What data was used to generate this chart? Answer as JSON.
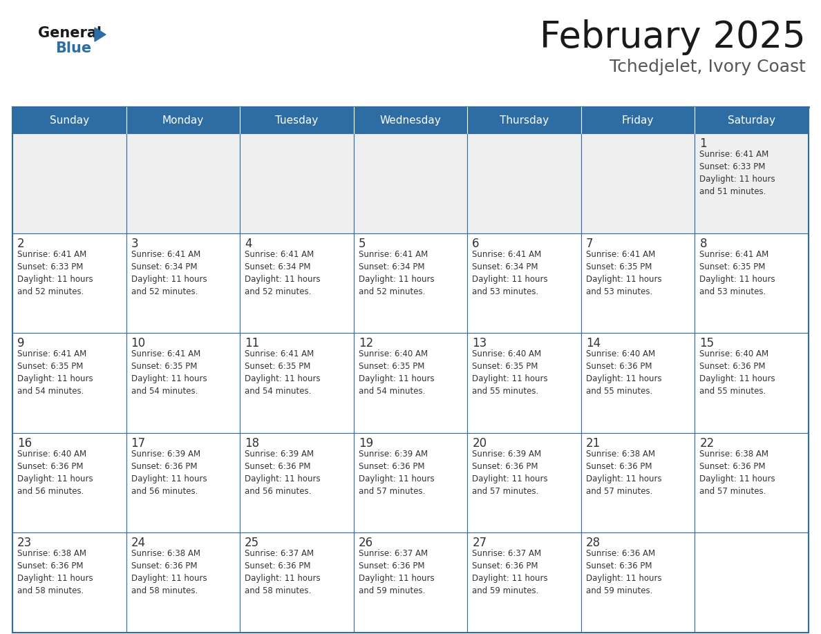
{
  "title": "February 2025",
  "subtitle": "Tchedjelet, Ivory Coast",
  "header_bg": "#2E6DA4",
  "header_text_color": "#FFFFFF",
  "row1_bg": "#EFEFEF",
  "cell_bg": "#FFFFFF",
  "grid_line_color": "#2E6DA4",
  "day_headers": [
    "Sunday",
    "Monday",
    "Tuesday",
    "Wednesday",
    "Thursday",
    "Friday",
    "Saturday"
  ],
  "title_color": "#1a1a1a",
  "subtitle_color": "#555555",
  "day_number_color": "#333333",
  "cell_text_color": "#333333",
  "weeks": [
    [
      {
        "day": "",
        "info": ""
      },
      {
        "day": "",
        "info": ""
      },
      {
        "day": "",
        "info": ""
      },
      {
        "day": "",
        "info": ""
      },
      {
        "day": "",
        "info": ""
      },
      {
        "day": "",
        "info": ""
      },
      {
        "day": "1",
        "info": "Sunrise: 6:41 AM\nSunset: 6:33 PM\nDaylight: 11 hours\nand 51 minutes."
      }
    ],
    [
      {
        "day": "2",
        "info": "Sunrise: 6:41 AM\nSunset: 6:33 PM\nDaylight: 11 hours\nand 52 minutes."
      },
      {
        "day": "3",
        "info": "Sunrise: 6:41 AM\nSunset: 6:34 PM\nDaylight: 11 hours\nand 52 minutes."
      },
      {
        "day": "4",
        "info": "Sunrise: 6:41 AM\nSunset: 6:34 PM\nDaylight: 11 hours\nand 52 minutes."
      },
      {
        "day": "5",
        "info": "Sunrise: 6:41 AM\nSunset: 6:34 PM\nDaylight: 11 hours\nand 52 minutes."
      },
      {
        "day": "6",
        "info": "Sunrise: 6:41 AM\nSunset: 6:34 PM\nDaylight: 11 hours\nand 53 minutes."
      },
      {
        "day": "7",
        "info": "Sunrise: 6:41 AM\nSunset: 6:35 PM\nDaylight: 11 hours\nand 53 minutes."
      },
      {
        "day": "8",
        "info": "Sunrise: 6:41 AM\nSunset: 6:35 PM\nDaylight: 11 hours\nand 53 minutes."
      }
    ],
    [
      {
        "day": "9",
        "info": "Sunrise: 6:41 AM\nSunset: 6:35 PM\nDaylight: 11 hours\nand 54 minutes."
      },
      {
        "day": "10",
        "info": "Sunrise: 6:41 AM\nSunset: 6:35 PM\nDaylight: 11 hours\nand 54 minutes."
      },
      {
        "day": "11",
        "info": "Sunrise: 6:41 AM\nSunset: 6:35 PM\nDaylight: 11 hours\nand 54 minutes."
      },
      {
        "day": "12",
        "info": "Sunrise: 6:40 AM\nSunset: 6:35 PM\nDaylight: 11 hours\nand 54 minutes."
      },
      {
        "day": "13",
        "info": "Sunrise: 6:40 AM\nSunset: 6:35 PM\nDaylight: 11 hours\nand 55 minutes."
      },
      {
        "day": "14",
        "info": "Sunrise: 6:40 AM\nSunset: 6:36 PM\nDaylight: 11 hours\nand 55 minutes."
      },
      {
        "day": "15",
        "info": "Sunrise: 6:40 AM\nSunset: 6:36 PM\nDaylight: 11 hours\nand 55 minutes."
      }
    ],
    [
      {
        "day": "16",
        "info": "Sunrise: 6:40 AM\nSunset: 6:36 PM\nDaylight: 11 hours\nand 56 minutes."
      },
      {
        "day": "17",
        "info": "Sunrise: 6:39 AM\nSunset: 6:36 PM\nDaylight: 11 hours\nand 56 minutes."
      },
      {
        "day": "18",
        "info": "Sunrise: 6:39 AM\nSunset: 6:36 PM\nDaylight: 11 hours\nand 56 minutes."
      },
      {
        "day": "19",
        "info": "Sunrise: 6:39 AM\nSunset: 6:36 PM\nDaylight: 11 hours\nand 57 minutes."
      },
      {
        "day": "20",
        "info": "Sunrise: 6:39 AM\nSunset: 6:36 PM\nDaylight: 11 hours\nand 57 minutes."
      },
      {
        "day": "21",
        "info": "Sunrise: 6:38 AM\nSunset: 6:36 PM\nDaylight: 11 hours\nand 57 minutes."
      },
      {
        "day": "22",
        "info": "Sunrise: 6:38 AM\nSunset: 6:36 PM\nDaylight: 11 hours\nand 57 minutes."
      }
    ],
    [
      {
        "day": "23",
        "info": "Sunrise: 6:38 AM\nSunset: 6:36 PM\nDaylight: 11 hours\nand 58 minutes."
      },
      {
        "day": "24",
        "info": "Sunrise: 6:38 AM\nSunset: 6:36 PM\nDaylight: 11 hours\nand 58 minutes."
      },
      {
        "day": "25",
        "info": "Sunrise: 6:37 AM\nSunset: 6:36 PM\nDaylight: 11 hours\nand 58 minutes."
      },
      {
        "day": "26",
        "info": "Sunrise: 6:37 AM\nSunset: 6:36 PM\nDaylight: 11 hours\nand 59 minutes."
      },
      {
        "day": "27",
        "info": "Sunrise: 6:37 AM\nSunset: 6:36 PM\nDaylight: 11 hours\nand 59 minutes."
      },
      {
        "day": "28",
        "info": "Sunrise: 6:36 AM\nSunset: 6:36 PM\nDaylight: 11 hours\nand 59 minutes."
      },
      {
        "day": "",
        "info": ""
      }
    ]
  ],
  "logo_text_general": "General",
  "logo_text_blue": "Blue",
  "logo_color_general": "#1a1a1a",
  "logo_color_blue": "#2E6DA4",
  "logo_triangle_color": "#2E6DA4"
}
